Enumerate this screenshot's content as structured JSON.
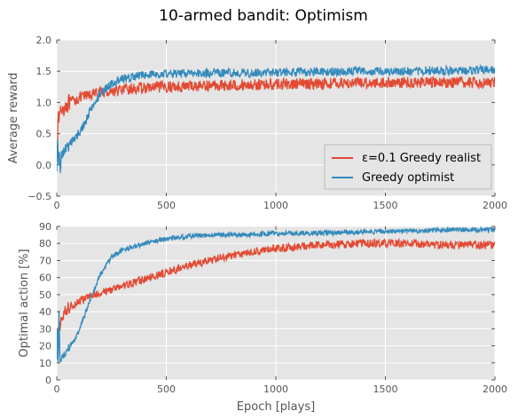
{
  "figure": {
    "title": "10-armed bandit: Optimism"
  },
  "chart_data": [
    {
      "type": "line",
      "title": "",
      "xlabel": "",
      "ylabel": "Average reward",
      "xlim": [
        0,
        2000
      ],
      "ylim": [
        -0.5,
        2.0
      ],
      "xticks": [
        0,
        500,
        1000,
        1500,
        2000
      ],
      "yticks": [
        -0.5,
        0.0,
        0.5,
        1.0,
        1.5,
        2.0
      ],
      "xtick_labels": [
        "0",
        "500",
        "1000",
        "1500",
        "2000"
      ],
      "ytick_labels": [
        "−0.5",
        "0.0",
        "0.5",
        "1.0",
        "1.5",
        "2.0"
      ],
      "grid": true,
      "legend_position": "lower-right",
      "series": [
        {
          "name": "ε=0.1 Greedy realist",
          "color": "#e24a33",
          "x": [
            0,
            5,
            10,
            20,
            40,
            60,
            80,
            100,
            150,
            200,
            300,
            400,
            500,
            700,
            1000,
            1300,
            1600,
            2000
          ],
          "y": [
            0.2,
            0.65,
            0.78,
            0.88,
            0.95,
            1.0,
            1.03,
            1.07,
            1.12,
            1.16,
            1.2,
            1.23,
            1.25,
            1.27,
            1.29,
            1.31,
            1.32,
            1.32
          ]
        },
        {
          "name": "Greedy optimist",
          "color": "#348abd",
          "x": [
            0,
            3,
            8,
            12,
            16,
            20,
            30,
            50,
            75,
            100,
            125,
            150,
            200,
            250,
            300,
            400,
            500,
            700,
            1000,
            1500,
            2000
          ],
          "y": [
            0.0,
            0.45,
            -0.1,
            0.3,
            -0.17,
            0.15,
            0.2,
            0.3,
            0.4,
            0.5,
            0.65,
            0.85,
            1.15,
            1.3,
            1.38,
            1.44,
            1.46,
            1.47,
            1.48,
            1.5,
            1.52
          ]
        }
      ]
    },
    {
      "type": "line",
      "title": "",
      "xlabel": "Epoch [plays]",
      "ylabel": "Optimal action [%]",
      "xlim": [
        0,
        2000
      ],
      "ylim": [
        0,
        90
      ],
      "xticks": [
        0,
        500,
        1000,
        1500,
        2000
      ],
      "yticks": [
        0,
        10,
        20,
        30,
        40,
        50,
        60,
        70,
        80,
        90
      ],
      "xtick_labels": [
        "0",
        "500",
        "1000",
        "1500",
        "2000"
      ],
      "ytick_labels": [
        "0",
        "10",
        "20",
        "30",
        "40",
        "50",
        "60",
        "70",
        "80",
        "90"
      ],
      "grid": true,
      "series": [
        {
          "color": "#e24a33",
          "x": [
            0,
            5,
            10,
            20,
            40,
            60,
            100,
            150,
            200,
            300,
            400,
            500,
            600,
            700,
            800,
            1000,
            1200,
            1400,
            1600,
            1800,
            2000
          ],
          "y": [
            10,
            25,
            30,
            35,
            40,
            43,
            46,
            49,
            51,
            55,
            59,
            63,
            67,
            70,
            73,
            77,
            79,
            80,
            80,
            79,
            79
          ]
        },
        {
          "color": "#348abd",
          "x": [
            0,
            3,
            6,
            10,
            15,
            20,
            30,
            50,
            75,
            100,
            125,
            150,
            175,
            200,
            250,
            300,
            400,
            500,
            600,
            700,
            800,
            1000,
            1200,
            1500,
            1800,
            2000
          ],
          "y": [
            10,
            38,
            10,
            40,
            8,
            12,
            14,
            18,
            22,
            28,
            37,
            46,
            54,
            62,
            72,
            76,
            80,
            83,
            84,
            85,
            85,
            86,
            86,
            87,
            88,
            88
          ]
        }
      ]
    }
  ]
}
